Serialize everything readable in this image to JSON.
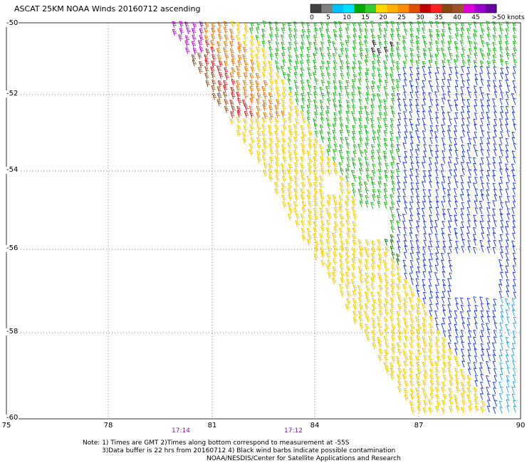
{
  "title": "ASCAT 25KM NOAA Winds 20160712 ascending",
  "colorbar": {
    "colors": [
      "#404040",
      "#808080",
      "#00bfff",
      "#00e0ff",
      "#00aa00",
      "#33cc33",
      "#ffd700",
      "#ffb000",
      "#ff8c00",
      "#e05000",
      "#c00000",
      "#ff2020",
      "#8b4513",
      "#a0522d",
      "#dd00dd",
      "#9900cc",
      "#6a00a0"
    ],
    "tick_labels": [
      "0",
      "5",
      "10",
      "15",
      "20",
      "25",
      "30",
      "35",
      "40",
      "45",
      ">50"
    ],
    "units": "knots"
  },
  "axes": {
    "lat_labels": [
      "-50",
      "-52",
      "-54",
      "-56",
      "-58",
      "-60"
    ],
    "lon_labels": [
      "75",
      "78",
      "81",
      "84",
      "87",
      "90"
    ]
  },
  "swath_times": [
    "17:14",
    "17:12"
  ],
  "notes": {
    "line1": "Note: 1) Times are GMT 2)Times along bottom correspond to measurement at -55S",
    "line2": "3)Data buffer is 22 hrs from 20160712 4) Black wind barbs indicate possible contamination",
    "line3": "NOAA/NESDIS/Center for Satellite Applications and Research"
  },
  "wind_colors": {
    "purple": "#b000c8",
    "brown": "#8b4513",
    "red": "#cc1010",
    "orange": "#e07000",
    "yellow": "#f0c800",
    "green": "#10b010",
    "darkgreen": "#007000",
    "blue": "#1030d0",
    "lightblue": "#20a0e0",
    "black": "#000000"
  }
}
